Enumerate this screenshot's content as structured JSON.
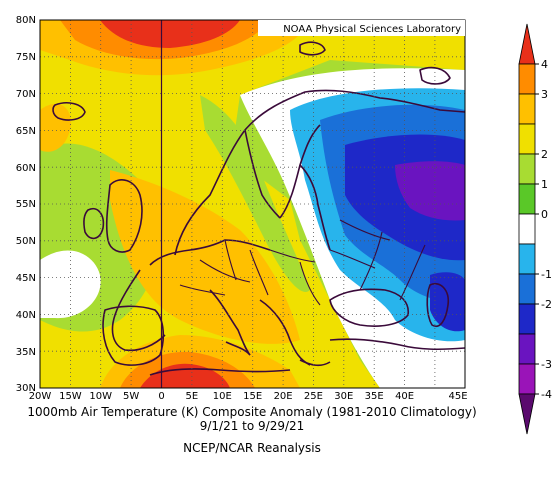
{
  "map": {
    "credit": "NOAA Physical Sciences Laboratory",
    "title": "1000mb Air Temperature (K) Composite Anomaly (1981-2010 Climatology)",
    "date_range": "9/1/21  to 9/29/21",
    "source": "NCEP/NCAR Reanalysis",
    "lon_ticks": [
      "20W",
      "15W",
      "10W",
      "5W",
      "0",
      "5E",
      "10E",
      "15E",
      "20E",
      "25E",
      "30E",
      "35E",
      "40E",
      "45E"
    ],
    "lat_ticks": [
      "80N",
      "75N",
      "70N",
      "65N",
      "60N",
      "55N",
      "50N",
      "45N",
      "40N",
      "35N",
      "30N"
    ]
  },
  "colorbar": {
    "labels": [
      "4",
      "3",
      "2",
      "1",
      "0",
      "-1",
      "-2",
      "-3",
      "-4"
    ],
    "colors": [
      "#e8301a",
      "#ff8c00",
      "#ffc000",
      "#f0e000",
      "#a8dc32",
      "#5ac828",
      "#ffffff",
      "#28b4ec",
      "#1a70d8",
      "#1e28c8",
      "#6a14c0",
      "#9a14b8",
      "#5a0a6e"
    ]
  }
}
